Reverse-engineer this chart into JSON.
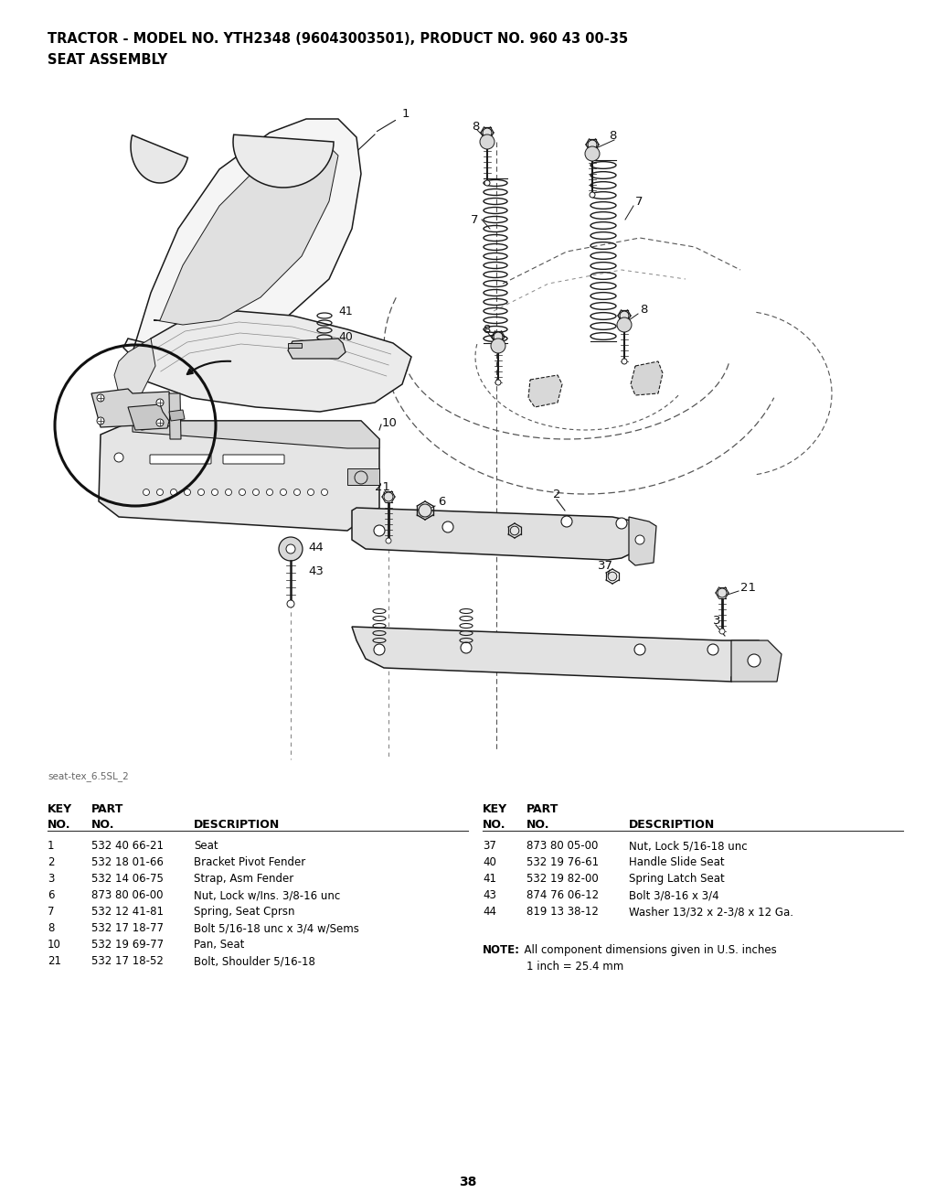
{
  "title_line1": "TRACTOR - MODEL NO. YTH2348 (96043003501), PRODUCT NO. 960 43 00-35",
  "title_line2": "SEAT ASSEMBLY",
  "watermark": "seat-tex_6.5SL_2",
  "page_number": "38",
  "parts_left": [
    [
      "1",
      "532 40 66-21",
      "Seat"
    ],
    [
      "2",
      "532 18 01-66",
      "Bracket Pivot Fender"
    ],
    [
      "3",
      "532 14 06-75",
      "Strap, Asm Fender"
    ],
    [
      "6",
      "873 80 06-00",
      "Nut, Lock w/Ins. 3/8-16 unc"
    ],
    [
      "7",
      "532 12 41-81",
      "Spring, Seat Cprsn"
    ],
    [
      "8",
      "532 17 18-77",
      "Bolt 5/16-18 unc x 3/4 w/Sems"
    ],
    [
      "10",
      "532 19 69-77",
      "Pan, Seat"
    ],
    [
      "21",
      "532 17 18-52",
      "Bolt, Shoulder 5/16-18"
    ]
  ],
  "parts_right": [
    [
      "37",
      "873 80 05-00",
      "Nut, Lock 5/16-18 unc"
    ],
    [
      "40",
      "532 19 76-61",
      "Handle Slide Seat"
    ],
    [
      "41",
      "532 19 82-00",
      "Spring Latch Seat"
    ],
    [
      "43",
      "874 76 06-12",
      "Bolt 3/8-16 x 3/4"
    ],
    [
      "44",
      "819 13 38-12",
      "Washer 13/32 x 2-3/8 x 12 Ga."
    ]
  ],
  "note_bold": "NOTE:",
  "note_text1": "  All component dimensions given in U.S. inches",
  "note_text2": "1 inch = 25.4 mm",
  "bg_color": "#ffffff",
  "text_color": "#000000",
  "figsize": [
    10.24,
    13.16
  ]
}
